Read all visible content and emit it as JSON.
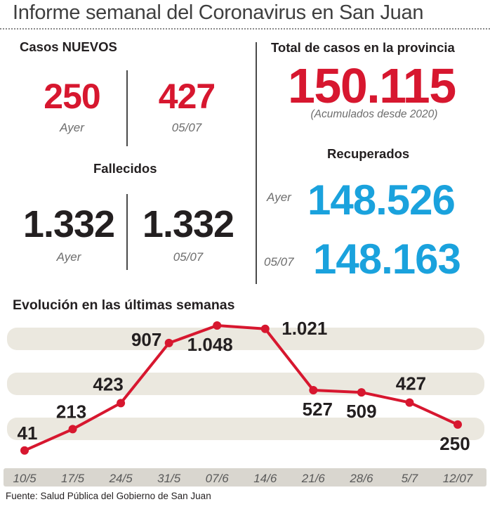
{
  "title": "Informe semanal del Coronavirus en San Juan",
  "casos_nuevos": {
    "header": "Casos NUEVOS",
    "ayer_value": "250",
    "ayer_label": "Ayer",
    "prev_value": "427",
    "prev_label": "05/07"
  },
  "fallecidos": {
    "header": "Fallecidos",
    "ayer_value": "1.332",
    "ayer_label": "Ayer",
    "prev_value": "1.332",
    "prev_label": "05/07"
  },
  "total": {
    "header": "Total de casos en la provincia",
    "value": "150.115",
    "note": "(Acumulados desde 2020)"
  },
  "recuperados": {
    "header": "Recuperados",
    "ayer_label": "Ayer",
    "ayer_value": "148.526",
    "prev_label": "05/07",
    "prev_value": "148.163"
  },
  "colors": {
    "accent_red": "#d7172f",
    "accent_blue": "#1aa2dd",
    "band": "#ebe8df",
    "axis_bar": "#d9d6cf"
  },
  "chart_data": {
    "type": "line",
    "title": "Evolución en las últimas semanas",
    "categories": [
      "10/5",
      "17/5",
      "24/5",
      "31/5",
      "07/6",
      "14/6",
      "21/6",
      "28/6",
      "5/7",
      "12/07"
    ],
    "values": [
      41,
      213,
      423,
      907,
      1048,
      1021,
      527,
      509,
      427,
      250
    ],
    "data_labels": [
      "41",
      "213",
      "423",
      "907",
      "1.048",
      "1.021",
      "527",
      "509",
      "427",
      "250"
    ],
    "grid": "horizontal bands",
    "legend": "none"
  },
  "source": "Fuente: Salud Pública del Gobierno de San Juan"
}
